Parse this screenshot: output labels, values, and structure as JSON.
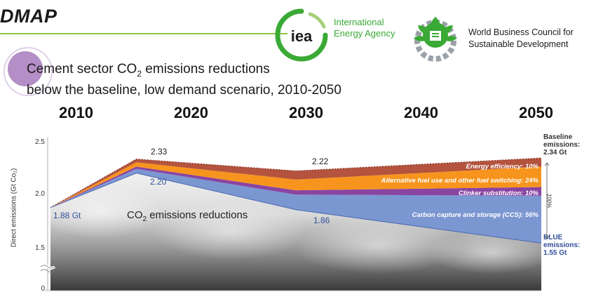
{
  "header": {
    "title": "DMAP",
    "org1": {
      "line1": "International",
      "line2": "Energy Agency",
      "logo_text": "iea"
    },
    "org2": {
      "line1": "World Business Council for",
      "line2": "Sustainable Development"
    }
  },
  "colors": {
    "energy_efficiency": "#b4533e",
    "fuel_switching": "#f7941d",
    "clinker": "#8a44a2",
    "ccs": "#7b97d1",
    "iea_green": "#3aa935",
    "bubble": "#b48ec6"
  },
  "chart_data": {
    "type": "area",
    "title_line1_pre": "Cement sector CO",
    "title_sub": "2",
    "title_line1_post": " emissions reductions",
    "title_line2": "below the baseline, low demand scenario, 2010-2050",
    "x_labels": [
      "2010",
      "2020",
      "2030",
      "2040",
      "2050"
    ],
    "x": [
      2010,
      2017,
      2030,
      2050
    ],
    "ylabel": "Direct emissions (Gt Co₂)",
    "yticks": [
      "0",
      "1.5",
      "2.0",
      "2.5"
    ],
    "ylim": [
      0,
      2.55
    ],
    "axis_break": true,
    "baseline": [
      1.88,
      2.33,
      2.22,
      2.34
    ],
    "blue": [
      1.88,
      2.2,
      1.86,
      1.55
    ],
    "series": [
      {
        "name": "Carbon capture and storage (CCS): 56%",
        "share": 0.56,
        "values": [
          0.0,
          0.04,
          0.14,
          0.44
        ]
      },
      {
        "name": "Clinker substitution: 10%",
        "share": 0.1,
        "values": [
          0.0,
          0.02,
          0.04,
          0.08
        ]
      },
      {
        "name": "Alternative fuel use and other fuel switching: 24%",
        "share": 0.24,
        "values": [
          0.0,
          0.04,
          0.1,
          0.19
        ]
      },
      {
        "name": "Energy efficiency: 10%",
        "share": 0.1,
        "values": [
          0.0,
          0.03,
          0.08,
          0.08
        ]
      }
    ],
    "annotations": {
      "start": "1.88 Gt",
      "base_2020": "2.33",
      "blue_2020": "2.20",
      "base_2030": "2.22",
      "blue_2030": "1.86",
      "reductions_label_pre": "CO",
      "reductions_label_sub": "2",
      "reductions_label_post": " emissions reductions",
      "baseline_label": [
        "Baseline",
        "emissions:",
        "2.34 Gt"
      ],
      "blue_label": [
        "BLUE",
        "emissions:",
        "1.55 Gt"
      ],
      "total": "100%"
    }
  }
}
